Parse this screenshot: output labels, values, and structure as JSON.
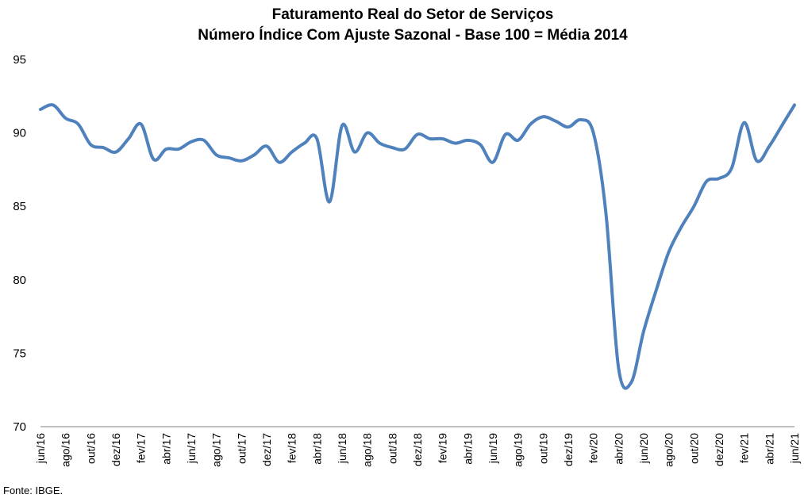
{
  "chart_data": {
    "type": "line",
    "title": [
      "Faturamento Real do Setor de Serviços",
      "Número Índice Com Ajuste Sazonal - Base 100 = Média 2014"
    ],
    "xlabel": "",
    "ylabel": "",
    "ylim": [
      70,
      95
    ],
    "yticks": [
      70,
      75,
      80,
      85,
      90,
      95
    ],
    "grid": false,
    "legend": "none",
    "line_color": "#4F81BD",
    "x_tick_labels": [
      "jun/16",
      "ago/16",
      "out/16",
      "dez/16",
      "fev/17",
      "abr/17",
      "jun/17",
      "ago/17",
      "out/17",
      "dez/17",
      "fev/18",
      "abr/18",
      "jun/18",
      "ago/18",
      "out/18",
      "dez/18",
      "fev/19",
      "abr/19",
      "jun/19",
      "ago/19",
      "out/19",
      "dez/19",
      "fev/20",
      "abr/20",
      "jun/20",
      "ago/20",
      "out/20",
      "dez/20",
      "fev/21",
      "abr/21",
      "jun/21"
    ],
    "x": [
      "jun/16",
      "jul/16",
      "ago/16",
      "set/16",
      "out/16",
      "nov/16",
      "dez/16",
      "jan/17",
      "fev/17",
      "mar/17",
      "abr/17",
      "mai/17",
      "jun/17",
      "jul/17",
      "ago/17",
      "set/17",
      "out/17",
      "nov/17",
      "dez/17",
      "jan/18",
      "fev/18",
      "mar/18",
      "abr/18",
      "mai/18",
      "jun/18",
      "jul/18",
      "ago/18",
      "set/18",
      "out/18",
      "nov/18",
      "dez/18",
      "jan/19",
      "fev/19",
      "mar/19",
      "abr/19",
      "mai/19",
      "jun/19",
      "jul/19",
      "ago/19",
      "set/19",
      "out/19",
      "nov/19",
      "dez/19",
      "jan/20",
      "fev/20",
      "mar/20",
      "abr/20",
      "mai/20",
      "jun/20",
      "jul/20",
      "ago/20",
      "set/20",
      "out/20",
      "nov/20",
      "dez/20",
      "jan/21",
      "fev/21",
      "mar/21",
      "abr/21",
      "mai/21",
      "jun/21"
    ],
    "series": [
      {
        "values": [
          91.6,
          91.9,
          91.0,
          90.6,
          89.2,
          89.0,
          88.7,
          89.6,
          90.6,
          88.2,
          88.9,
          88.9,
          89.4,
          89.5,
          88.5,
          88.3,
          88.1,
          88.5,
          89.1,
          88.0,
          88.7,
          89.3,
          89.6,
          85.3,
          90.5,
          88.7,
          90.0,
          89.3,
          89.0,
          88.9,
          89.9,
          89.6,
          89.6,
          89.3,
          89.5,
          89.2,
          88.0,
          89.9,
          89.5,
          90.6,
          91.1,
          90.8,
          90.4,
          90.9,
          90.0,
          84.5,
          74.0,
          73.0,
          76.5,
          79.3,
          81.9,
          83.6,
          85.0,
          86.7,
          86.9,
          87.6,
          90.7,
          88.1,
          89.1,
          90.5,
          91.9
        ]
      }
    ]
  },
  "source_text": "Fonte: IBGE."
}
